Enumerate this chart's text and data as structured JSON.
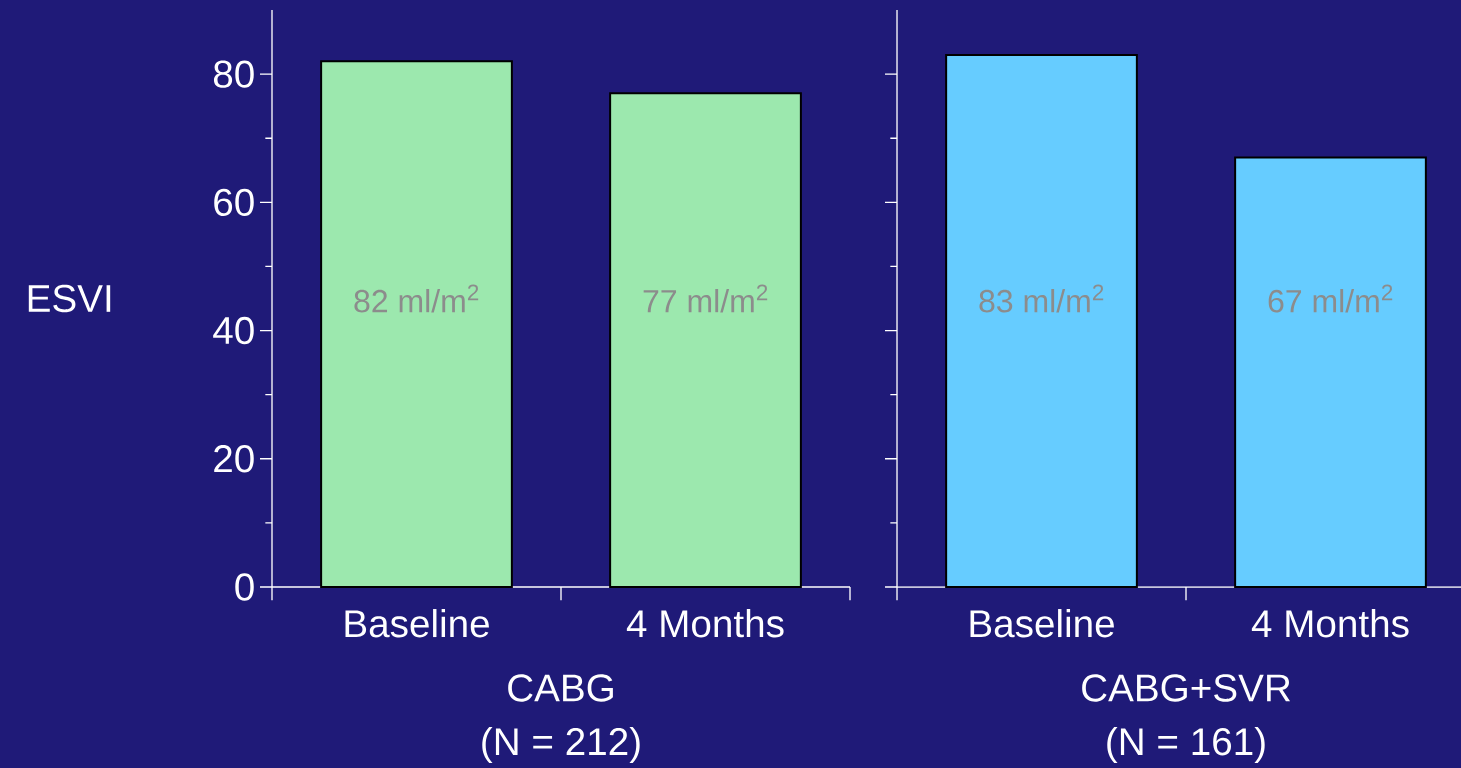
{
  "chart_data": [
    {
      "type": "bar",
      "ylabel": "ESVI",
      "xlabel": "CABG",
      "annotations": [
        "(N = 212)"
      ],
      "categories": [
        "Baseline",
        "4 Months"
      ],
      "values": [
        82,
        77
      ],
      "value_labels": [
        "82 ml/m$^{2}$",
        "77 ml/m$^{2}$"
      ],
      "color": "#9ce8ae",
      "ylim": [
        0,
        90
      ],
      "yticks": [
        0,
        20,
        40,
        60,
        80
      ]
    },
    {
      "type": "bar",
      "xlabel": "CABG+SVR",
      "annotations": [
        "(N = 161)"
      ],
      "categories": [
        "Baseline",
        "4 Months"
      ],
      "values": [
        83,
        67
      ],
      "value_labels": [
        "83 ml/m$^{2}$",
        "67 ml/m$^{2}$"
      ],
      "color": "#66ccff",
      "ylim": [
        0,
        90
      ],
      "yticks": [
        0,
        20,
        40,
        60,
        80
      ],
      "tick_labels": "x"
    }
  ]
}
